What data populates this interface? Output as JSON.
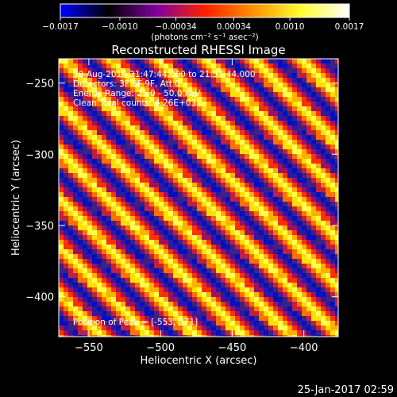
{
  "chart_data": {
    "type": "heatmap",
    "title": "Reconstructed RHESSI Image",
    "xlabel": "Heliocentric X (arcsec)",
    "ylabel": "Heliocentric Y (arcsec)",
    "xlim": [
      -571,
      -376
    ],
    "ylim": [
      -428,
      -233
    ],
    "xticks": [
      -550,
      -500,
      -450,
      -400
    ],
    "xtick_labels": [
      "−550",
      "−500",
      "−450",
      "−400"
    ],
    "yticks": [
      -250,
      -300,
      -350,
      -400
    ],
    "ytick_labels": [
      "−250",
      "−300",
      "−350",
      "−400"
    ],
    "colorbar": {
      "min": -0.0017,
      "max": 0.0017,
      "ticks": [
        -0.0017,
        -0.001,
        -0.00034,
        0.00034,
        0.001,
        0.0017
      ],
      "tick_labels": [
        "−0.0017",
        "−0.0010",
        "−0.00034",
        "0.00034",
        "0.0010",
        "0.0017"
      ],
      "unit_label": "(photons cm⁻² s⁻¹ asec⁻²)",
      "colormap": [
        "#0000ff",
        "#000000",
        "#8000a0",
        "#ff2000",
        "#ff9000",
        "#ffff30",
        "#ffffff"
      ]
    },
    "annotations": [
      "30-Aug-2014 21:47:44.000 to 21:57:44.000",
      "Detectors: 3F 6F 9F, Att 0",
      "Energy Range: 25.0 - 50.0 keV",
      "Clean    Total counts: 4.26E+03"
    ],
    "peak_label": "Position of Peak = [-553,-371]",
    "pattern": "diagonal stripes, lower-left to upper-right, alternating positive and negative flux"
  },
  "footer": {
    "timestamp": "25-Jan-2017 02:59"
  }
}
